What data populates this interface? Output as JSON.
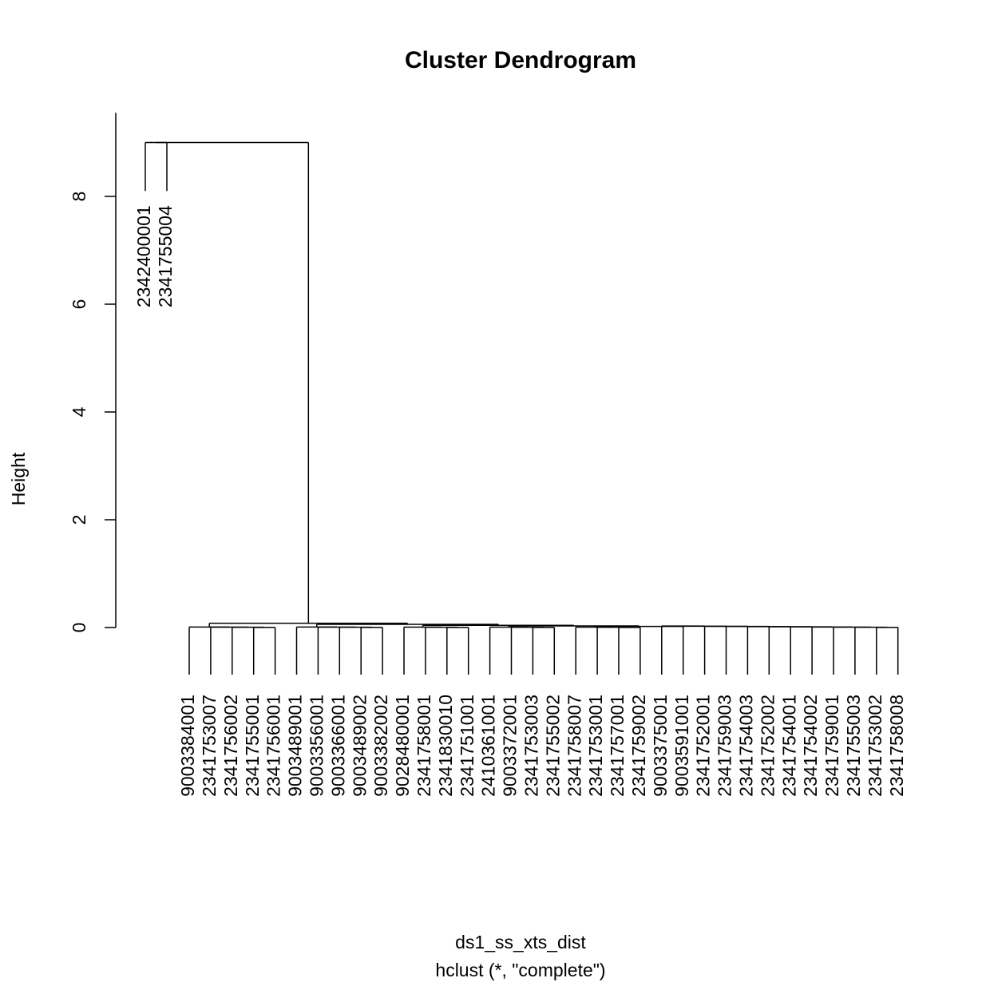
{
  "chart_data": {
    "type": "dendrogram",
    "title": "Cluster Dendrogram",
    "ylabel": "Height",
    "xlabel": "ds1_ss_xts_dist",
    "sublabel": "hclust (*, \"complete\")",
    "ylim": [
      0,
      9
    ],
    "yticks": [
      0,
      2,
      4,
      6,
      8
    ],
    "ytick_labels": [
      "0",
      "2",
      "4",
      "6",
      "8"
    ],
    "leaves": [
      {
        "label": "2342400001",
        "group": "outlier"
      },
      {
        "label": "2341755004",
        "group": "outlier"
      },
      {
        "label": "9003384001",
        "group": "main"
      },
      {
        "label": "2341753007",
        "group": "main"
      },
      {
        "label": "2341756002",
        "group": "main"
      },
      {
        "label": "2341755001",
        "group": "main"
      },
      {
        "label": "2341756001",
        "group": "main"
      },
      {
        "label": "9003489001",
        "group": "main"
      },
      {
        "label": "9003356001",
        "group": "main"
      },
      {
        "label": "9003366001",
        "group": "main"
      },
      {
        "label": "9003489002",
        "group": "main"
      },
      {
        "label": "9003382002",
        "group": "main"
      },
      {
        "label": "9028480001",
        "group": "main"
      },
      {
        "label": "2341758001",
        "group": "main"
      },
      {
        "label": "2341830010",
        "group": "main"
      },
      {
        "label": "2341751001",
        "group": "main"
      },
      {
        "label": "2410361001",
        "group": "main"
      },
      {
        "label": "9003372001",
        "group": "main"
      },
      {
        "label": "2341753003",
        "group": "main"
      },
      {
        "label": "2341755002",
        "group": "main"
      },
      {
        "label": "2341758007",
        "group": "main"
      },
      {
        "label": "2341753001",
        "group": "main"
      },
      {
        "label": "2341757001",
        "group": "main"
      },
      {
        "label": "2341759002",
        "group": "main"
      },
      {
        "label": "9003375001",
        "group": "main"
      },
      {
        "label": "9003591001",
        "group": "main"
      },
      {
        "label": "2341752001",
        "group": "main"
      },
      {
        "label": "2341759003",
        "group": "main"
      },
      {
        "label": "2341754003",
        "group": "main"
      },
      {
        "label": "2341752002",
        "group": "main"
      },
      {
        "label": "2341754001",
        "group": "main"
      },
      {
        "label": "2341754002",
        "group": "main"
      },
      {
        "label": "2341759001",
        "group": "main"
      },
      {
        "label": "2341755003",
        "group": "main"
      },
      {
        "label": "2341753002",
        "group": "main"
      },
      {
        "label": "2341758008",
        "group": "main"
      }
    ],
    "merges": [
      {
        "left": 0,
        "right": 1,
        "height": 9.0
      },
      {
        "left": [
          2,
          35
        ],
        "right": [
          0,
          1
        ],
        "height": 9.0
      },
      {
        "left": [
          2,
          6
        ],
        "right": [
          7,
          35
        ],
        "height": 0.08
      },
      {
        "left": [
          2,
          2
        ],
        "right": [
          3,
          6
        ],
        "height": 0.02
      },
      {
        "left": [
          3,
          3
        ],
        "right": [
          4,
          6
        ],
        "height": 0.01
      },
      {
        "left": [
          4,
          4
        ],
        "right": [
          5,
          6
        ],
        "height": 0.005
      },
      {
        "left": [
          5,
          5
        ],
        "right": [
          6,
          6
        ],
        "height": 0.0
      },
      {
        "left": [
          7,
          11
        ],
        "right": [
          12,
          35
        ],
        "height": 0.06
      },
      {
        "left": [
          7,
          7
        ],
        "right": [
          8,
          11
        ],
        "height": 0.04
      },
      {
        "left": [
          8,
          8
        ],
        "right": [
          9,
          11
        ],
        "height": 0.02
      },
      {
        "left": [
          9,
          9
        ],
        "right": [
          10,
          11
        ],
        "height": 0.01
      },
      {
        "left": [
          10,
          10
        ],
        "right": [
          11,
          11
        ],
        "height": 0.0
      },
      {
        "left": [
          12,
          15
        ],
        "right": [
          16,
          35
        ],
        "height": 0.04
      },
      {
        "left": [
          12,
          12
        ],
        "right": [
          13,
          15
        ],
        "height": 0.02
      },
      {
        "left": [
          13,
          13
        ],
        "right": [
          14,
          15
        ],
        "height": 0.01
      },
      {
        "left": [
          14,
          14
        ],
        "right": [
          15,
          15
        ],
        "height": 0.0
      },
      {
        "left": [
          16,
          19
        ],
        "right": [
          20,
          35
        ],
        "height": 0.03
      },
      {
        "left": [
          16,
          16
        ],
        "right": [
          17,
          19
        ],
        "height": 0.02
      },
      {
        "left": [
          17,
          17
        ],
        "right": [
          18,
          19
        ],
        "height": 0.01
      },
      {
        "left": [
          18,
          18
        ],
        "right": [
          19,
          19
        ],
        "height": 0.0
      },
      {
        "left": [
          20,
          23
        ],
        "right": [
          24,
          35
        ],
        "height": 0.02
      },
      {
        "left": [
          20,
          20
        ],
        "right": [
          21,
          23
        ],
        "height": 0.01
      },
      {
        "left": [
          21,
          21
        ],
        "right": [
          22,
          23
        ],
        "height": 0.005
      },
      {
        "left": [
          22,
          22
        ],
        "right": [
          23,
          23
        ],
        "height": 0.0
      },
      {
        "left": [
          24,
          24
        ],
        "right": [
          25,
          35
        ],
        "height": 0.01
      },
      {
        "left": [
          25,
          25
        ],
        "right": [
          26,
          35
        ],
        "height": 0.005
      },
      {
        "left": [
          26,
          26
        ],
        "right": [
          27,
          35
        ],
        "height": 0.003
      },
      {
        "left": [
          27,
          27
        ],
        "right": [
          28,
          35
        ],
        "height": 0.002
      },
      {
        "left": [
          28,
          28
        ],
        "right": [
          29,
          35
        ],
        "height": 0.001
      },
      {
        "left": [
          29,
          29
        ],
        "right": [
          30,
          35
        ],
        "height": 0.001
      },
      {
        "left": [
          30,
          30
        ],
        "right": [
          31,
          35
        ],
        "height": 0.0
      },
      {
        "left": [
          31,
          31
        ],
        "right": [
          32,
          35
        ],
        "height": 0.0
      },
      {
        "left": [
          32,
          32
        ],
        "right": [
          33,
          35
        ],
        "height": 0.0
      },
      {
        "left": [
          33,
          33
        ],
        "right": [
          34,
          35
        ],
        "height": 0.0
      },
      {
        "left": [
          34,
          34
        ],
        "right": [
          35,
          35
        ],
        "height": 0.0
      }
    ],
    "outlier_leaf_height": 8.1
  }
}
